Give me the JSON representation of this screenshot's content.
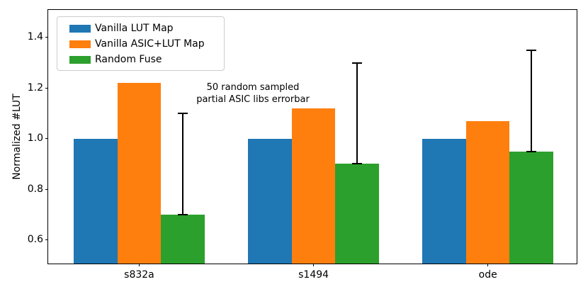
{
  "chart_data": {
    "type": "bar",
    "title": "",
    "xlabel": "",
    "ylabel": "Normalized #LUT",
    "categories": [
      "s832a",
      "s1494",
      "ode"
    ],
    "series": [
      {
        "name": "Vanilla LUT Map",
        "color": "#1f77b4",
        "values": [
          1.0,
          1.0,
          1.0
        ]
      },
      {
        "name": "Vanilla ASIC+LUT Map",
        "color": "#ff7f0e",
        "values": [
          1.22,
          1.12,
          1.07
        ]
      },
      {
        "name": "Random Fuse",
        "color": "#2ca02c",
        "values": [
          0.7,
          0.9,
          0.95
        ],
        "error_upper": [
          0.4,
          0.4,
          0.4
        ],
        "error_lower": [
          0.0,
          0.0,
          0.0
        ],
        "error_color": "#000000"
      }
    ],
    "yticks": [
      {
        "value": 0.6,
        "label": "0.6"
      },
      {
        "value": 0.8,
        "label": "0.8"
      },
      {
        "value": 1.0,
        "label": "1.0"
      },
      {
        "value": 1.2,
        "label": "1.2"
      },
      {
        "value": 1.4,
        "label": "1.4"
      }
    ],
    "ylim": [
      0.506,
      1.509
    ],
    "xlim": [
      -0.522,
      2.509
    ],
    "bar_width": 0.25,
    "annotation": {
      "line1": "50 random sampled",
      "line2": "partial ASIC libs errorbar"
    },
    "legend": {
      "position": "upper-left"
    },
    "grid": false
  }
}
